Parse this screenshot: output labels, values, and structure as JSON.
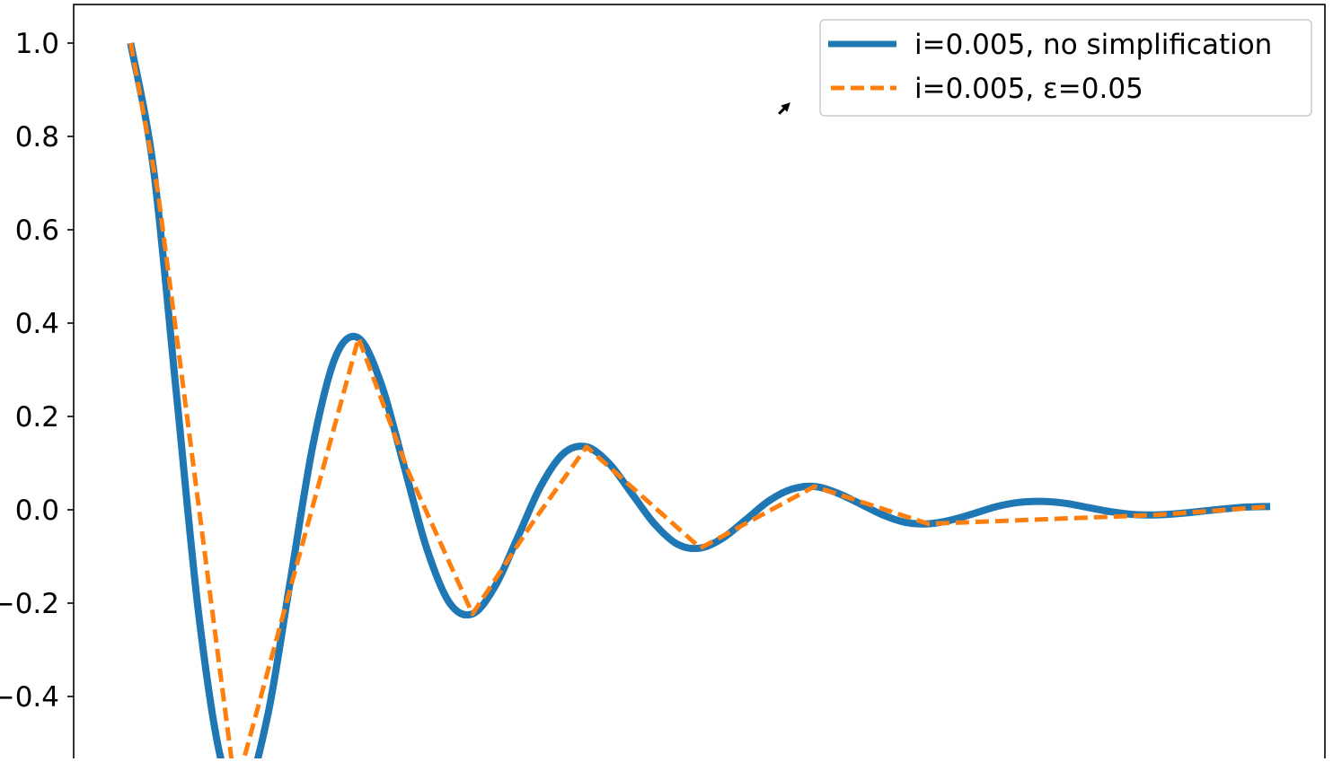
{
  "chart_data": {
    "type": "line",
    "title": "",
    "xlabel": "",
    "ylabel": "",
    "xlim": [
      -0.25,
      5.24
    ],
    "ylim": [
      -0.53,
      1.21
    ],
    "grid": false,
    "legend_placement": "upper-right",
    "yticks": [
      -0.4,
      -0.2,
      0.0,
      0.2,
      0.4,
      0.6,
      0.8,
      1.0
    ],
    "ytick_labels": [
      "−0.4",
      "−0.2",
      "0.0",
      "0.2",
      "0.4",
      "0.6",
      "0.8",
      "1.0"
    ],
    "series": [
      {
        "name": "i=0.005, no simplification",
        "color": "#1f77b4",
        "style": "solid",
        "x": [
          0,
          0.1,
          0.2,
          0.3,
          0.4,
          0.5,
          0.6,
          0.7,
          0.8,
          0.9,
          1.0,
          1.1,
          1.2,
          1.3,
          1.4,
          1.5,
          1.6,
          1.7,
          1.8,
          1.9,
          2.0,
          2.1,
          2.2,
          2.3,
          2.4,
          2.5,
          2.6,
          2.7,
          2.8,
          2.9,
          3.0,
          3.1,
          3.2,
          3.3,
          3.4,
          3.5,
          3.6,
          3.7,
          3.8,
          3.9,
          4.0,
          4.1,
          4.2,
          4.3,
          4.4,
          4.5,
          4.6,
          4.7,
          4.8,
          4.9,
          5.0
        ],
        "y": [
          1,
          0.732,
          0.253,
          -0.229,
          -0.542,
          -0.607,
          -0.444,
          -0.154,
          0.139,
          0.329,
          0.368,
          0.269,
          0.093,
          -0.084,
          -0.2,
          -0.223,
          -0.163,
          -0.057,
          0.051,
          0.121,
          0.135,
          0.099,
          0.034,
          -0.031,
          -0.074,
          -0.082,
          -0.06,
          -0.021,
          0.019,
          0.044,
          0.05,
          0.036,
          0.013,
          -0.011,
          -0.027,
          -0.03,
          -0.022,
          -0.008,
          0.007,
          0.016,
          0.018,
          0.014,
          0.005,
          -0.004,
          -0.01,
          -0.011,
          -0.008,
          -0.003,
          0.002,
          0.006,
          0.007
        ]
      },
      {
        "name": "i=0.005, ε=0.05",
        "color": "#ff7f0e",
        "style": "dashed",
        "x": [
          0,
          0.12,
          0.46,
          1.0,
          1.22,
          1.5,
          1.76,
          2.0,
          2.5,
          3.0,
          3.5,
          4.5,
          5.0
        ],
        "y": [
          1,
          0.68,
          -0.6,
          0.368,
          0.08,
          -0.223,
          -0.03,
          0.135,
          -0.082,
          0.05,
          -0.03,
          -0.011,
          0.007
        ]
      }
    ]
  }
}
